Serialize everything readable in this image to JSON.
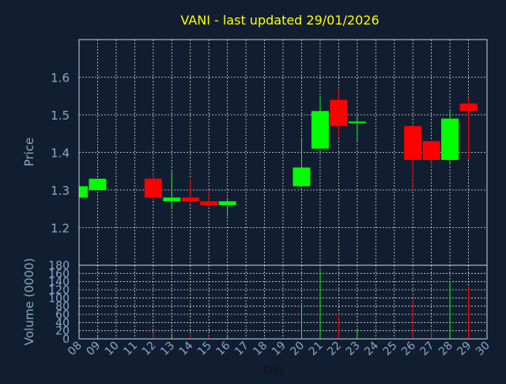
{
  "chart_data": {
    "type": "candlestick",
    "title": "VANI - last updated 29/01/2026",
    "xlabel": "Day",
    "price_axis": {
      "label": "Price",
      "ylim": [
        1.1,
        1.7
      ],
      "ticks": [
        "1.2",
        "1.3",
        "1.4",
        "1.5",
        "1.6"
      ]
    },
    "volume_axis": {
      "label": "Volume (0000)",
      "ylim": [
        0,
        180
      ],
      "ticks": [
        "0",
        "20",
        "40",
        "60",
        "80",
        "100",
        "120",
        "140",
        "160",
        "180"
      ]
    },
    "x_ticks": [
      "08",
      "09",
      "10",
      "11",
      "12",
      "13",
      "14",
      "15",
      "16",
      "17",
      "18",
      "19",
      "20",
      "21",
      "22",
      "23",
      "24",
      "25",
      "26",
      "27",
      "28",
      "29",
      "30"
    ],
    "xlim": [
      8,
      30
    ],
    "grid": true,
    "colors": {
      "up": "#00ff00",
      "down": "#ff0000",
      "background": "#111e31",
      "title": "#ffff00",
      "axis_text": "#8aa8c8",
      "grid": "#ffffff"
    },
    "candles": [
      {
        "day": 8,
        "open": 1.28,
        "high": 1.31,
        "low": 1.28,
        "close": 1.31,
        "volume": 4
      },
      {
        "day": 9,
        "open": 1.3,
        "high": 1.33,
        "low": 1.3,
        "close": 1.33,
        "volume": 6
      },
      {
        "day": 12,
        "open": 1.33,
        "high": 1.345,
        "low": 1.27,
        "close": 1.28,
        "volume": 15
      },
      {
        "day": 13,
        "open": 1.27,
        "high": 1.35,
        "low": 1.25,
        "close": 1.28,
        "volume": 12
      },
      {
        "day": 14,
        "open": 1.28,
        "high": 1.33,
        "low": 1.265,
        "close": 1.27,
        "volume": 10
      },
      {
        "day": 15,
        "open": 1.27,
        "high": 1.3,
        "low": 1.26,
        "close": 1.26,
        "volume": 8
      },
      {
        "day": 16,
        "open": 1.26,
        "high": 1.28,
        "low": 1.23,
        "close": 1.27,
        "volume": 10
      },
      {
        "day": 20,
        "open": 1.31,
        "high": 1.44,
        "low": 1.31,
        "close": 1.36,
        "volume": 78
      },
      {
        "day": 21,
        "open": 1.41,
        "high": 1.55,
        "low": 1.41,
        "close": 1.51,
        "volume": 170
      },
      {
        "day": 22,
        "open": 1.54,
        "high": 1.57,
        "low": 1.44,
        "close": 1.47,
        "volume": 62
      },
      {
        "day": 23,
        "open": 1.478,
        "high": 1.5,
        "low": 1.43,
        "close": 1.482,
        "volume": 22
      },
      {
        "day": 26,
        "open": 1.47,
        "high": 1.47,
        "low": 1.3,
        "close": 1.38,
        "volume": 100
      },
      {
        "day": 27,
        "open": 1.43,
        "high": 1.43,
        "low": 1.36,
        "close": 1.38,
        "volume": 24
      },
      {
        "day": 28,
        "open": 1.38,
        "high": 1.51,
        "low": 1.37,
        "close": 1.49,
        "volume": 140
      },
      {
        "day": 29,
        "open": 1.53,
        "high": 1.545,
        "low": 1.38,
        "close": 1.51,
        "volume": 125
      }
    ]
  }
}
